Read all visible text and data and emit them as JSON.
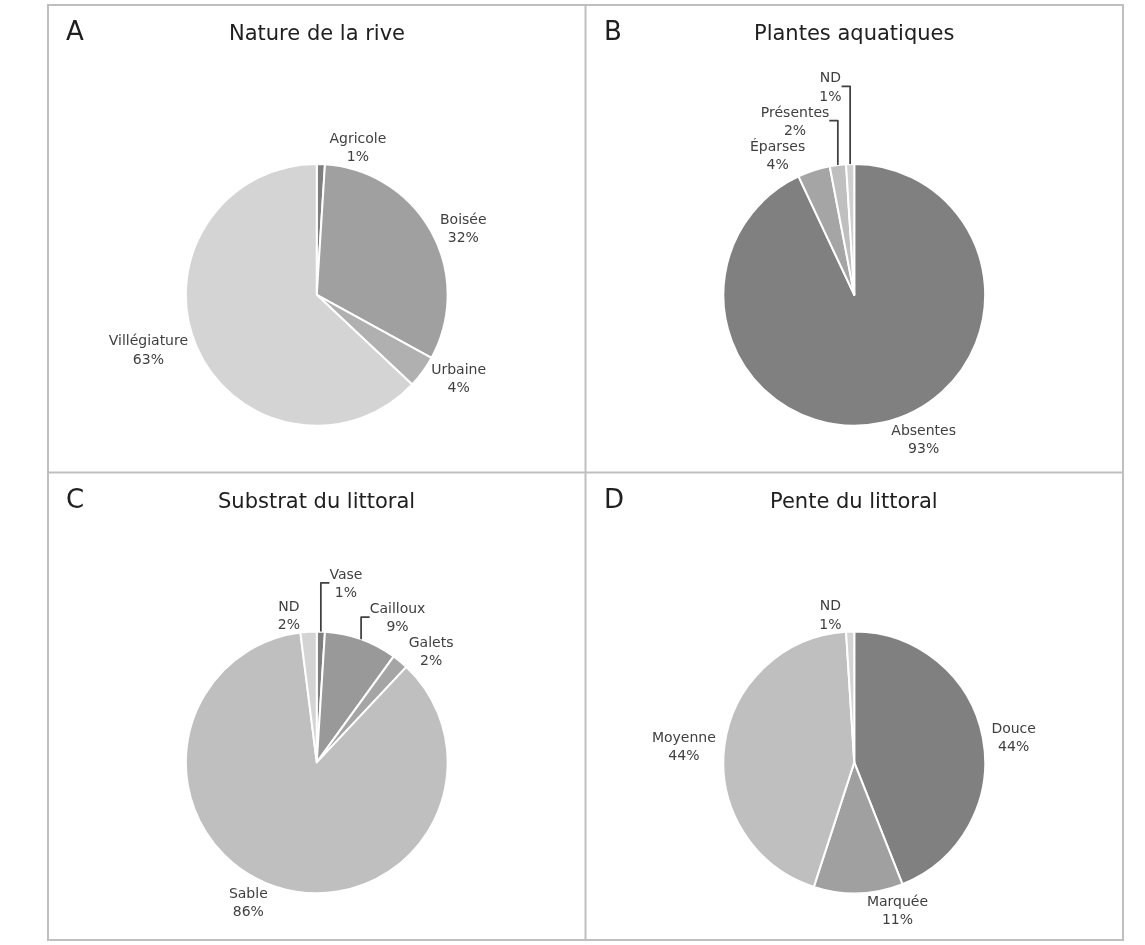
{
  "chart_data": [
    {
      "type": "pie",
      "title": "Nature de la rive",
      "annotations": [
        "A"
      ],
      "categories": [
        "Agricole",
        "Boisée",
        "Urbaine",
        "Villégiature"
      ],
      "values": [
        1,
        32,
        4,
        63
      ],
      "value_labels": [
        "1%",
        "32%",
        "4%",
        "63%"
      ],
      "colors": [
        "#7f7f7f",
        "#a0a0a0",
        "#b0b0b0",
        "#d4d4d4"
      ]
    },
    {
      "type": "pie",
      "title": "Plantes aquatiques",
      "annotations": [
        "B"
      ],
      "categories": [
        "Absentes",
        "Éparses",
        "Présentes",
        "ND"
      ],
      "values": [
        93,
        4,
        2,
        1
      ],
      "value_labels": [
        "93%",
        "4%",
        "2%",
        "1%"
      ],
      "colors": [
        "#808080",
        "#a5a5a5",
        "#bfbfbf",
        "#d0d0d0"
      ]
    },
    {
      "type": "pie",
      "title": "Substrat du littoral",
      "annotations": [
        "C"
      ],
      "categories": [
        "Vase",
        "Cailloux",
        "Galets",
        "Sable",
        "ND"
      ],
      "values": [
        1,
        9,
        2,
        86,
        2
      ],
      "value_labels": [
        "1%",
        "9%",
        "2%",
        "86%",
        "2%"
      ],
      "colors": [
        "#7f7f7f",
        "#999999",
        "#a5a5a5",
        "#bfbfbf",
        "#d4d4d4"
      ]
    },
    {
      "type": "pie",
      "title": "Pente du littoral",
      "annotations": [
        "D"
      ],
      "categories": [
        "Douce",
        "Marquée",
        "Moyenne",
        "ND"
      ],
      "values": [
        44,
        11,
        44,
        1
      ],
      "value_labels": [
        "44%",
        "11%",
        "44%",
        "1%"
      ],
      "colors": [
        "#808080",
        "#a0a0a0",
        "#bfbfbf",
        "#d4d4d4"
      ]
    }
  ]
}
